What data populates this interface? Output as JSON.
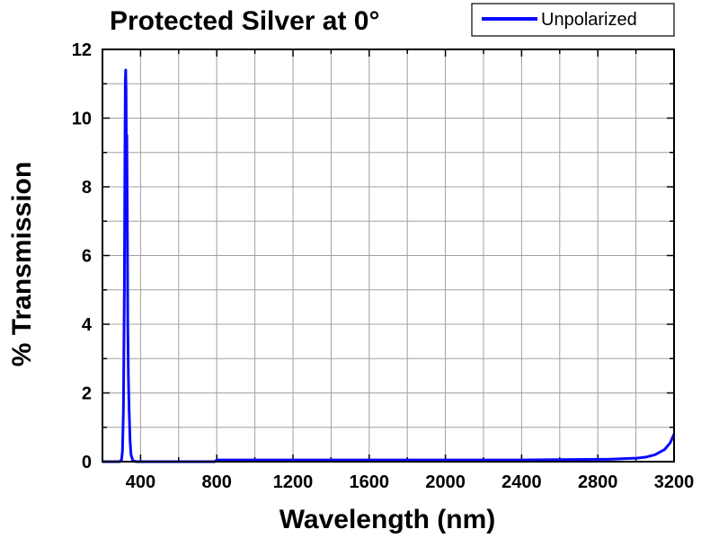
{
  "chart_data": {
    "type": "line",
    "title": "Protected Silver at 0°",
    "xlabel": "Wavelength (nm)",
    "ylabel": "% Transmission",
    "xlim": [
      200,
      3200
    ],
    "ylim": [
      0,
      12
    ],
    "x_ticks": [
      400,
      800,
      1200,
      1600,
      2000,
      2400,
      2800,
      3200
    ],
    "y_ticks": [
      0,
      2,
      4,
      6,
      8,
      10,
      12
    ],
    "grid": true,
    "legend_position": "top-right",
    "series": [
      {
        "name": "Unpolarized",
        "color": "#0a0aff",
        "x": [
          200,
          250,
          290,
          300,
          305,
          310,
          315,
          318,
          320,
          322,
          324,
          326,
          328,
          330,
          333,
          336,
          340,
          345,
          350,
          360,
          380,
          400,
          500,
          600,
          700,
          790,
          800,
          1000,
          1200,
          1400,
          1600,
          1800,
          2000,
          2200,
          2400,
          2600,
          2800,
          2850,
          2900,
          2950,
          3000,
          3050,
          3100,
          3150,
          3180,
          3200
        ],
        "y": [
          0,
          0,
          0,
          0.05,
          0.3,
          1.5,
          5.0,
          9.0,
          11.1,
          11.4,
          10.8,
          8.5,
          9.5,
          7.5,
          4.0,
          2.5,
          1.5,
          0.6,
          0.2,
          0.02,
          0,
          0,
          0,
          0,
          0,
          0,
          0.05,
          0.05,
          0.05,
          0.05,
          0.05,
          0.05,
          0.05,
          0.05,
          0.05,
          0.06,
          0.07,
          0.07,
          0.08,
          0.09,
          0.1,
          0.13,
          0.2,
          0.35,
          0.55,
          0.8
        ]
      }
    ]
  }
}
